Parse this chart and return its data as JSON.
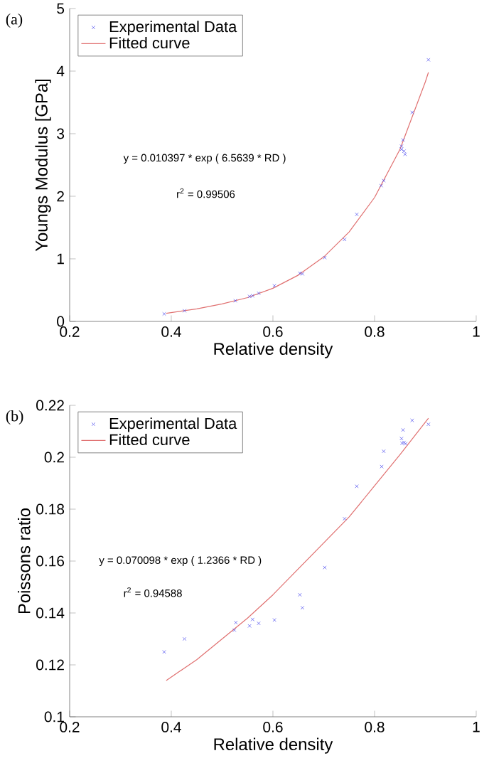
{
  "chart_data": [
    {
      "type": "scatter",
      "xlabel": "Relative density",
      "ylabel": "Youngs Modulus [GPa]",
      "xlim": [
        0.2,
        1
      ],
      "ylim": [
        0,
        5
      ],
      "xticks": [
        0.2,
        0.4,
        0.6,
        0.8,
        1
      ],
      "yticks": [
        0,
        1,
        2,
        3,
        4,
        5
      ],
      "legend": "top left",
      "annotations": [
        "(a)",
        "y = 0.010397 * exp ( 6.5639 * RD  )",
        "r$^{2}$ = 0.99506"
      ],
      "series": [
        {
          "name": "Experimental Data",
          "marker": "cross",
          "color": "#5b5bf0",
          "x": [
            0.386,
            0.426,
            0.526,
            0.554,
            0.56,
            0.572,
            0.603,
            0.653,
            0.658,
            0.702,
            0.741,
            0.765,
            0.813,
            0.818,
            0.853,
            0.853,
            0.856,
            0.858,
            0.86,
            0.874,
            0.906
          ],
          "values": [
            0.12,
            0.17,
            0.33,
            0.4,
            0.41,
            0.45,
            0.57,
            0.77,
            0.76,
            1.02,
            1.31,
            1.71,
            2.17,
            2.25,
            2.75,
            2.8,
            2.9,
            2.72,
            2.67,
            3.34,
            4.18
          ]
        },
        {
          "name": "Fitted curve",
          "type": "line",
          "color": "#e07070",
          "x": [
            0.39,
            0.45,
            0.5,
            0.55,
            0.6,
            0.65,
            0.7,
            0.75,
            0.8,
            0.85,
            0.9,
            0.906
          ],
          "values": [
            0.13,
            0.2,
            0.28,
            0.38,
            0.53,
            0.74,
            1.03,
            1.43,
            1.98,
            2.75,
            3.83,
            3.98
          ]
        }
      ]
    },
    {
      "type": "scatter",
      "xlabel": "Relative density",
      "ylabel": "Poissons ratio",
      "xlim": [
        0.2,
        1
      ],
      "ylim": [
        0.1,
        0.22
      ],
      "xticks": [
        0.2,
        0.4,
        0.6,
        0.8,
        1
      ],
      "yticks": [
        0.1,
        0.12,
        0.14,
        0.16,
        0.18,
        0.2,
        0.22
      ],
      "legend": "top left",
      "annotations": [
        "(b)",
        "y = 0.070098 * exp ( 1.2366 * RD  )",
        "r$^{2}$ = 0.94588"
      ],
      "series": [
        {
          "name": "Experimental Data",
          "marker": "cross",
          "color": "#5b5bf0",
          "x": [
            0.386,
            0.426,
            0.524,
            0.527,
            0.554,
            0.56,
            0.572,
            0.603,
            0.653,
            0.658,
            0.702,
            0.741,
            0.765,
            0.814,
            0.818,
            0.853,
            0.854,
            0.856,
            0.858,
            0.861,
            0.874,
            0.906
          ],
          "values": [
            0.125,
            0.13,
            0.1334,
            0.1363,
            0.135,
            0.1375,
            0.136,
            0.1373,
            0.147,
            0.142,
            0.1575,
            0.1763,
            0.1888,
            0.1964,
            0.2023,
            0.2072,
            0.2054,
            0.2105,
            0.2057,
            0.2052,
            0.2142,
            0.2127
          ]
        },
        {
          "name": "Fitted curve",
          "type": "line",
          "color": "#e07070",
          "x": [
            0.39,
            0.45,
            0.5,
            0.55,
            0.6,
            0.65,
            0.7,
            0.75,
            0.8,
            0.85,
            0.906
          ],
          "values": [
            0.114,
            0.122,
            0.13,
            0.138,
            0.147,
            0.157,
            0.167,
            0.177,
            0.189,
            0.201,
            0.215
          ]
        }
      ]
    }
  ]
}
